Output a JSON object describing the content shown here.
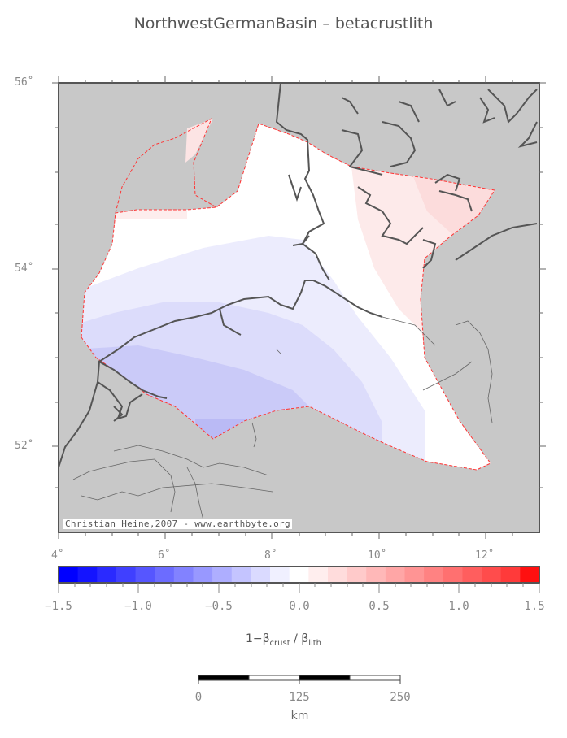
{
  "title": "NorthwestGermanBasin – betacrustlith",
  "map": {
    "lat_labels": [
      "56˚",
      "54˚",
      "52˚"
    ],
    "lon_labels": [
      "4˚",
      "6˚",
      "8˚",
      "10˚",
      "12˚"
    ],
    "credit": "Christian Heine,2007 - www.earthbyte.org",
    "colors": {
      "land": "#c8c8c8",
      "coast": "#555555",
      "boundary": "#ff3333"
    }
  },
  "colorbar": {
    "tick_labels": [
      "−1.5",
      "−1.0",
      "−0.5",
      "0.0",
      "0.5",
      "1.0",
      "1.5"
    ],
    "title_prefix": "1−β",
    "title_sub1": "crust",
    "title_mid": " / β",
    "title_sub2": "lith",
    "colors": [
      "#0000ff",
      "#1414ff",
      "#2a2aff",
      "#4040ff",
      "#5656ff",
      "#6c6cff",
      "#8282ff",
      "#9898ff",
      "#aeaeff",
      "#c4c4ff",
      "#dadaff",
      "#f0f0ff",
      "#ffffff",
      "#ffeeee",
      "#ffdcdc",
      "#ffcaca",
      "#ffb8b8",
      "#ffa6a6",
      "#ff9494",
      "#ff8282",
      "#ff7070",
      "#ff5e5e",
      "#ff4c4c",
      "#ff3a3a",
      "#ff1010"
    ]
  },
  "scalebar": {
    "labels": [
      "0",
      "125",
      "250"
    ],
    "unit": "km"
  }
}
